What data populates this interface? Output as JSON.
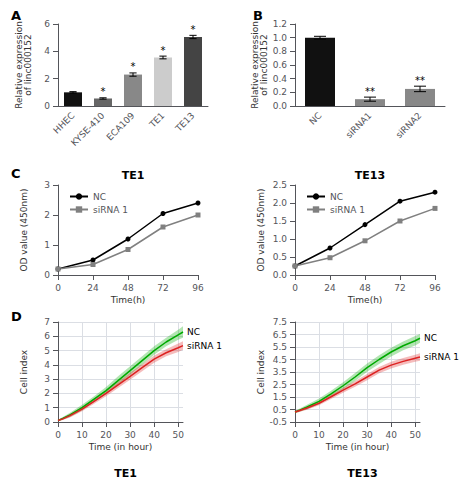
{
  "chart_data": [
    {
      "type": "bar",
      "panel_label": "A",
      "categories": [
        "HHEC",
        "KYSE-410",
        "ECA109",
        "TE1",
        "TE13"
      ],
      "values": [
        1.0,
        0.55,
        2.3,
        3.55,
        5.05
      ],
      "errors": [
        0.05,
        0.05,
        0.12,
        0.1,
        0.12
      ],
      "colors": [
        "#111111",
        "#666666",
        "#888888",
        "#cccccc",
        "#444444"
      ],
      "annotations": [
        null,
        "*",
        "*",
        "*",
        "*"
      ],
      "ylabel": "Relative expression\nof linc000152",
      "ylim": [
        0,
        6
      ],
      "yticks": [
        0,
        2,
        4,
        6
      ],
      "grid": false
    },
    {
      "type": "bar",
      "panel_label": "B",
      "categories": [
        "NC",
        "siRNA1",
        "siRNA2"
      ],
      "values": [
        1.0,
        0.1,
        0.25
      ],
      "errors": [
        0.02,
        0.03,
        0.04
      ],
      "colors": [
        "#111111",
        "#888888",
        "#888888"
      ],
      "annotations": [
        null,
        "**",
        "**"
      ],
      "ylabel": "Relative expression\nof linc000152",
      "ylim": [
        0.0,
        1.2
      ],
      "yticks": [
        {
          "value": 0.0,
          "label": "0.0"
        },
        0.2,
        0.4,
        0.6,
        0.8,
        {
          "value": 1.0,
          "label": "1.0"
        },
        1.2
      ],
      "grid": false
    },
    {
      "type": "line",
      "panel_label": "C",
      "title": "TE1",
      "xlabel": "Time(h)",
      "ylabel": "OD value (450nm)",
      "x": [
        0,
        24,
        48,
        72,
        96
      ],
      "xlim": [
        0,
        96
      ],
      "xticks": [
        0,
        24,
        48,
        72,
        96
      ],
      "ylim": [
        0,
        3
      ],
      "yticks": [
        0,
        1,
        2,
        3
      ],
      "series": [
        {
          "name": "NC",
          "color": "#000000",
          "marker": "circle",
          "values": [
            0.2,
            0.5,
            1.2,
            2.05,
            2.4
          ]
        },
        {
          "name": "siRNA 1",
          "color": "#808080",
          "marker": "square",
          "values": [
            0.2,
            0.35,
            0.85,
            1.6,
            2.0
          ]
        }
      ],
      "legend": "upper left",
      "grid": false
    },
    {
      "type": "line",
      "title": "TE13",
      "xlabel": "Time(h)",
      "ylabel": "OD value (450nm)",
      "x": [
        0,
        24,
        48,
        72,
        96
      ],
      "xlim": [
        0,
        96
      ],
      "xticks": [
        0,
        24,
        48,
        72,
        96
      ],
      "ylim": [
        0.0,
        2.5
      ],
      "yticks": [
        {
          "value": 0.0,
          "label": "0.0"
        },
        0.5,
        {
          "value": 1.0,
          "label": "1.0"
        },
        1.5,
        {
          "value": 2.0,
          "label": "2.0"
        },
        2.5
      ],
      "series": [
        {
          "name": "NC",
          "color": "#000000",
          "marker": "circle",
          "values": [
            0.25,
            0.75,
            1.4,
            2.05,
            2.3
          ]
        },
        {
          "name": "siRNA 1",
          "color": "#808080",
          "marker": "square",
          "values": [
            0.25,
            0.48,
            0.95,
            1.5,
            1.85
          ]
        }
      ],
      "legend": "upper left",
      "grid": false
    },
    {
      "type": "line",
      "panel_label": "D",
      "title": "TE1",
      "xlabel": "Time (in hour)",
      "ylabel": "Cell index",
      "x": [
        0,
        2,
        5,
        10,
        15,
        20,
        25,
        30,
        35,
        40,
        45,
        50,
        52
      ],
      "xlim": [
        0,
        52
      ],
      "xticks": [
        0,
        10,
        20,
        30,
        40,
        50
      ],
      "ylim": [
        0.0,
        7.0
      ],
      "yticks": [
        0,
        1,
        2,
        3,
        4,
        5,
        6,
        7
      ],
      "series": [
        {
          "name": "NC",
          "color": "#00aa00",
          "values": [
            0.1,
            0.25,
            0.5,
            1.0,
            1.6,
            2.2,
            2.9,
            3.6,
            4.3,
            5.0,
            5.6,
            6.1,
            6.3
          ],
          "upper": [
            0.15,
            0.35,
            0.65,
            1.2,
            1.8,
            2.45,
            3.2,
            3.9,
            4.6,
            5.3,
            5.9,
            6.45,
            6.7
          ],
          "lower": [
            0.05,
            0.15,
            0.35,
            0.8,
            1.4,
            1.95,
            2.6,
            3.3,
            4.0,
            4.7,
            5.3,
            5.75,
            5.9
          ]
        },
        {
          "name": "siRNA 1",
          "color": "#dd2222",
          "values": [
            0.1,
            0.22,
            0.45,
            0.9,
            1.45,
            2.0,
            2.6,
            3.2,
            3.8,
            4.4,
            4.85,
            5.2,
            5.35
          ],
          "upper": [
            0.15,
            0.3,
            0.58,
            1.05,
            1.62,
            2.2,
            2.82,
            3.45,
            4.05,
            4.65,
            5.1,
            5.5,
            5.65
          ],
          "lower": [
            0.05,
            0.14,
            0.32,
            0.75,
            1.28,
            1.8,
            2.38,
            2.95,
            3.55,
            4.15,
            4.6,
            4.9,
            5.05
          ]
        }
      ],
      "grid": true
    },
    {
      "type": "line",
      "title": "TE13",
      "xlabel": "Time (in hour)",
      "ylabel": "Cell index",
      "x": [
        0,
        2,
        5,
        10,
        15,
        20,
        25,
        30,
        35,
        40,
        45,
        50,
        52
      ],
      "xlim": [
        0,
        52
      ],
      "xticks": [
        0,
        10,
        20,
        30,
        40,
        50
      ],
      "ylim": [
        -0.5,
        7.5
      ],
      "yticks": [
        -0.5,
        0.5,
        1.5,
        2.5,
        3.5,
        4.5,
        5.5,
        6.5,
        7.5
      ],
      "series": [
        {
          "name": "NC",
          "color": "#00aa00",
          "values": [
            0.3,
            0.45,
            0.7,
            1.15,
            1.75,
            2.4,
            3.1,
            3.85,
            4.5,
            5.1,
            5.6,
            6.0,
            6.2
          ],
          "upper": [
            0.4,
            0.58,
            0.88,
            1.38,
            2.0,
            2.68,
            3.42,
            4.18,
            4.85,
            5.45,
            5.95,
            6.38,
            6.55
          ],
          "lower": [
            0.2,
            0.32,
            0.52,
            0.92,
            1.5,
            2.12,
            2.78,
            3.52,
            4.15,
            4.75,
            5.25,
            5.62,
            5.85
          ]
        },
        {
          "name": "siRNA 1",
          "color": "#dd2222",
          "values": [
            0.3,
            0.42,
            0.62,
            1.0,
            1.52,
            2.05,
            2.55,
            3.1,
            3.65,
            4.05,
            4.35,
            4.6,
            4.7
          ],
          "upper": [
            0.4,
            0.52,
            0.75,
            1.15,
            1.7,
            2.25,
            2.78,
            3.35,
            3.9,
            4.32,
            4.62,
            4.88,
            5.0
          ],
          "lower": [
            0.2,
            0.32,
            0.49,
            0.85,
            1.34,
            1.85,
            2.32,
            2.85,
            3.4,
            3.78,
            4.08,
            4.32,
            4.4
          ]
        }
      ],
      "grid": true
    }
  ]
}
